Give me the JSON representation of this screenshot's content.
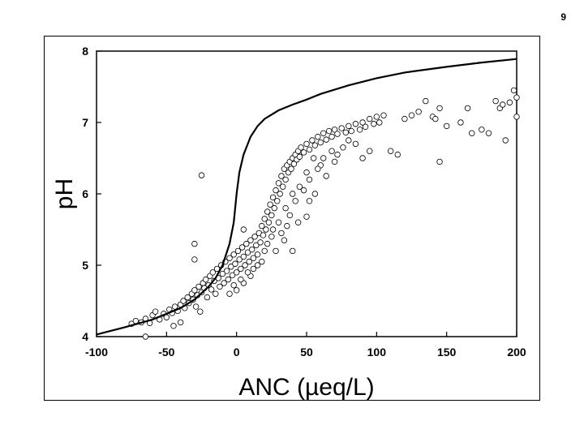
{
  "page": {
    "number": "9"
  },
  "chart_data": {
    "type": "scatter",
    "title": "",
    "xlabel": "ANC (µeq/L)",
    "ylabel": "pH",
    "xlim": [
      -100,
      200
    ],
    "ylim": [
      4,
      8
    ],
    "x_ticks": [
      "-100",
      "-50",
      "0",
      "50",
      "100",
      "150",
      "200"
    ],
    "y_ticks": [
      "4",
      "5",
      "6",
      "7",
      "8"
    ],
    "grid": false,
    "legend": "none",
    "colors": {
      "marker_fill": "#ffffff",
      "marker_stroke": "#000000",
      "line": "#000000"
    },
    "curve": {
      "x": [
        -100,
        -80,
        -60,
        -40,
        -30,
        -20,
        -15,
        -10,
        -5,
        -2,
        0,
        2,
        5,
        8,
        10,
        15,
        20,
        30,
        40,
        50,
        60,
        80,
        100,
        120,
        150,
        175,
        200
      ],
      "y": [
        4.03,
        4.13,
        4.24,
        4.4,
        4.52,
        4.7,
        4.82,
        5.0,
        5.3,
        5.6,
        6.0,
        6.3,
        6.55,
        6.7,
        6.8,
        6.95,
        7.05,
        7.17,
        7.25,
        7.32,
        7.4,
        7.52,
        7.62,
        7.7,
        7.78,
        7.84,
        7.89
      ]
    },
    "scatter": {
      "points": [
        [
          -75,
          4.18
        ],
        [
          -72,
          4.22
        ],
        [
          -68,
          4.2
        ],
        [
          -65,
          4.25
        ],
        [
          -62,
          4.19
        ],
        [
          -60,
          4.3
        ],
        [
          -58,
          4.35
        ],
        [
          -55,
          4.24
        ],
        [
          -52,
          4.32
        ],
        [
          -50,
          4.27
        ],
        [
          -48,
          4.38
        ],
        [
          -46,
          4.33
        ],
        [
          -45,
          4.15
        ],
        [
          -44,
          4.42
        ],
        [
          -42,
          4.36
        ],
        [
          -40,
          4.45
        ],
        [
          -38,
          4.5
        ],
        [
          -37,
          4.4
        ],
        [
          -35,
          4.55
        ],
        [
          -34,
          4.47
        ],
        [
          -32,
          4.6
        ],
        [
          -31,
          4.52
        ],
        [
          -30,
          4.65
        ],
        [
          -29,
          4.42
        ],
        [
          -28,
          4.58
        ],
        [
          -27,
          4.7
        ],
        [
          -26,
          4.35
        ],
        [
          -25,
          4.62
        ],
        [
          -24,
          4.75
        ],
        [
          -23,
          4.68
        ],
        [
          -22,
          4.8
        ],
        [
          -21,
          4.55
        ],
        [
          -20,
          4.72
        ],
        [
          -19,
          4.85
        ],
        [
          -18,
          4.66
        ],
        [
          -17,
          4.9
        ],
        [
          -16,
          4.78
        ],
        [
          -15,
          4.6
        ],
        [
          -14,
          4.95
        ],
        [
          -13,
          4.82
        ],
        [
          -12,
          4.7
        ],
        [
          -11,
          5.0
        ],
        [
          -10,
          4.88
        ],
        [
          -9,
          4.75
        ],
        [
          -8,
          5.05
        ],
        [
          -7,
          4.92
        ],
        [
          -6,
          4.8
        ],
        [
          -5,
          5.1
        ],
        [
          -4,
          4.98
        ],
        [
          -3,
          4.86
        ],
        [
          -2,
          5.15
        ],
        [
          -1,
          5.02
        ],
        [
          0,
          4.9
        ],
        [
          1,
          5.2
        ],
        [
          2,
          5.08
        ],
        [
          3,
          4.95
        ],
        [
          4,
          5.25
        ],
        [
          5,
          5.12
        ],
        [
          6,
          5.0
        ],
        [
          7,
          5.3
        ],
        [
          8,
          5.18
        ],
        [
          9,
          5.05
        ],
        [
          10,
          5.35
        ],
        [
          11,
          5.22
        ],
        [
          12,
          5.1
        ],
        [
          13,
          5.4
        ],
        [
          14,
          5.28
        ],
        [
          15,
          5.15
        ],
        [
          16,
          5.45
        ],
        [
          17,
          5.32
        ],
        [
          18,
          5.55
        ],
        [
          19,
          5.42
        ],
        [
          20,
          5.65
        ],
        [
          21,
          5.5
        ],
        [
          22,
          5.75
        ],
        [
          23,
          5.6
        ],
        [
          24,
          5.85
        ],
        [
          25,
          5.7
        ],
        [
          26,
          5.95
        ],
        [
          27,
          5.8
        ],
        [
          28,
          6.05
        ],
        [
          29,
          5.9
        ],
        [
          30,
          6.15
        ],
        [
          31,
          6.0
        ],
        [
          32,
          6.25
        ],
        [
          33,
          6.1
        ],
        [
          34,
          6.35
        ],
        [
          35,
          6.2
        ],
        [
          36,
          6.4
        ],
        [
          37,
          6.3
        ],
        [
          38,
          6.45
        ],
        [
          39,
          6.35
        ],
        [
          40,
          6.5
        ],
        [
          41,
          6.42
        ],
        [
          42,
          6.55
        ],
        [
          43,
          6.48
        ],
        [
          44,
          6.6
        ],
        [
          45,
          6.52
        ],
        [
          46,
          6.65
        ],
        [
          48,
          6.58
        ],
        [
          50,
          6.7
        ],
        [
          52,
          6.62
        ],
        [
          54,
          6.75
        ],
        [
          56,
          6.68
        ],
        [
          58,
          6.8
        ],
        [
          60,
          6.72
        ],
        [
          62,
          6.85
        ],
        [
          64,
          6.76
        ],
        [
          66,
          6.88
        ],
        [
          68,
          6.8
        ],
        [
          70,
          6.9
        ],
        [
          72,
          6.84
        ],
        [
          75,
          6.92
        ],
        [
          78,
          6.86
        ],
        [
          80,
          6.95
        ],
        [
          82,
          6.88
        ],
        [
          85,
          6.98
        ],
        [
          88,
          6.9
        ],
        [
          90,
          7.0
        ],
        [
          92,
          6.94
        ],
        [
          95,
          7.05
        ],
        [
          98,
          6.98
        ],
        [
          100,
          7.08
        ],
        [
          102,
          7.0
        ],
        [
          105,
          7.1
        ],
        [
          -30,
          5.3
        ],
        [
          -30,
          5.08
        ],
        [
          -25,
          6.26
        ],
        [
          5,
          5.5
        ],
        [
          50,
          5.68
        ],
        [
          -65,
          4.0
        ],
        [
          -40,
          4.2
        ],
        [
          110,
          6.6
        ],
        [
          115,
          6.55
        ],
        [
          120,
          7.05
        ],
        [
          125,
          7.1
        ],
        [
          130,
          7.15
        ],
        [
          135,
          7.3
        ],
        [
          140,
          7.08
        ],
        [
          142,
          7.05
        ],
        [
          145,
          7.2
        ],
        [
          145,
          6.45
        ],
        [
          150,
          6.95
        ],
        [
          160,
          7.0
        ],
        [
          165,
          7.2
        ],
        [
          168,
          6.85
        ],
        [
          175,
          6.9
        ],
        [
          180,
          6.85
        ],
        [
          185,
          7.3
        ],
        [
          188,
          7.2
        ],
        [
          190,
          7.25
        ],
        [
          192,
          6.75
        ],
        [
          195,
          7.28
        ],
        [
          198,
          7.45
        ],
        [
          200,
          7.35
        ],
        [
          200,
          7.08
        ],
        [
          90,
          6.5
        ],
        [
          95,
          6.6
        ],
        [
          85,
          6.7
        ],
        [
          80,
          6.75
        ],
        [
          60,
          6.4
        ],
        [
          55,
          6.5
        ],
        [
          50,
          6.3
        ],
        [
          45,
          6.1
        ],
        [
          40,
          6.0
        ],
        [
          35,
          5.8
        ],
        [
          30,
          5.6
        ],
        [
          25,
          5.4
        ],
        [
          20,
          5.2
        ],
        [
          15,
          5.0
        ],
        [
          10,
          4.85
        ],
        [
          5,
          4.75
        ],
        [
          0,
          4.65
        ],
        [
          -5,
          4.6
        ],
        [
          28,
          5.2
        ],
        [
          32,
          5.45
        ],
        [
          38,
          5.7
        ],
        [
          42,
          5.9
        ],
        [
          48,
          6.05
        ],
        [
          52,
          6.2
        ],
        [
          58,
          6.35
        ],
        [
          62,
          6.5
        ],
        [
          68,
          6.6
        ],
        [
          72,
          6.55
        ],
        [
          76,
          6.65
        ],
        [
          18,
          5.05
        ],
        [
          12,
          4.95
        ],
        [
          8,
          4.9
        ],
        [
          3,
          4.8
        ],
        [
          -2,
          4.72
        ],
        [
          22,
          5.3
        ],
        [
          26,
          5.5
        ],
        [
          34,
          5.35
        ],
        [
          44,
          5.6
        ],
        [
          40,
          5.2
        ],
        [
          36,
          5.55
        ],
        [
          56,
          6.0
        ],
        [
          64,
          6.25
        ],
        [
          70,
          6.45
        ],
        [
          52,
          5.9
        ]
      ]
    }
  }
}
